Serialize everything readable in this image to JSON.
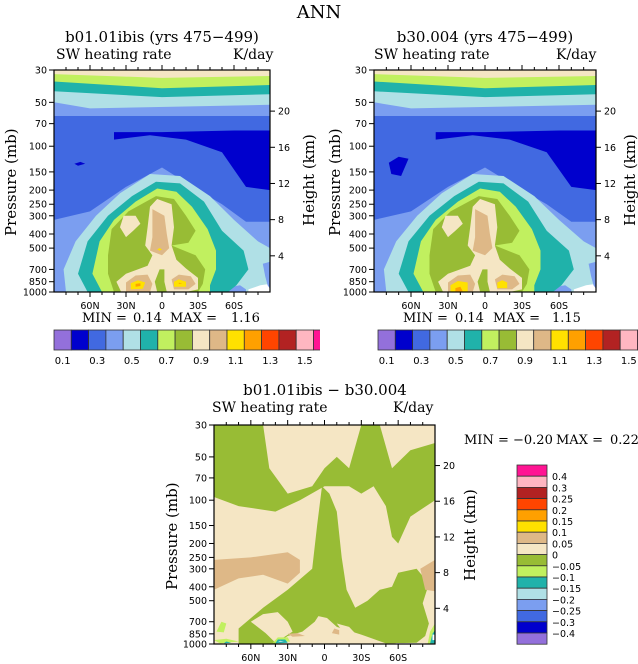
{
  "title": "ANN",
  "colors": {
    "palette": [
      "#9370DB",
      "#0000CD",
      "#4169E1",
      "#7B9EF0",
      "#B0E0E6",
      "#20B2AA",
      "#C1F05F",
      "#98BC35",
      "#F5E6C4",
      "#DEB887",
      "#FFE100",
      "#FFA000",
      "#FF4500",
      "#B22222",
      "#FFB6C1",
      "#FF1493"
    ]
  },
  "chart_data": [
    {
      "type": "heatmap",
      "subtype": "filled-contour",
      "title": "b01.01ibis (yrs 475-499)",
      "left_subtitle": "SW heating rate",
      "right_subtitle": "K/day",
      "xlabel": "",
      "ylabel": "Pressure (mb)",
      "ylabel_right": "Height (km)",
      "x_ticks": [
        "60N",
        "30N",
        "0",
        "30S",
        "60S"
      ],
      "x_tick_values": [
        60,
        30,
        0,
        -30,
        -60
      ],
      "xlim": [
        90,
        -90
      ],
      "y_ticks": [
        "30",
        "50",
        "70",
        "100",
        "150",
        "200",
        "250",
        "300",
        "400",
        "500",
        "700",
        "850",
        "1000"
      ],
      "y_tick_values": [
        30,
        50,
        70,
        100,
        150,
        200,
        250,
        300,
        400,
        500,
        700,
        850,
        1000
      ],
      "ylim": [
        30,
        1000
      ],
      "right_ticks": [
        "20",
        "16",
        "12",
        "8",
        "4"
      ],
      "right_tick_values": [
        20,
        16,
        12,
        8,
        4
      ],
      "min_label": "MIN =",
      "min": "0.14",
      "max_label": "MAX =",
      "max": "1.16",
      "colorbar_labels": [
        "0.1",
        "0.3",
        "0.5",
        "0.7",
        "0.9",
        "1.1",
        "1.3",
        "1.5"
      ],
      "colorbar_levels": [
        0.1,
        0.2,
        0.3,
        0.4,
        0.5,
        0.6,
        0.7,
        0.8,
        0.9,
        1.0,
        1.1,
        1.2,
        1.3,
        1.4,
        1.5
      ],
      "features": "Maxima (~1.1-1.16) near 850 mb at ~20N and ~20S; low values (<0.2) near 100-150 mb at high latitudes"
    },
    {
      "type": "heatmap",
      "subtype": "filled-contour",
      "title": "b30.004 (yrs 475-499)",
      "left_subtitle": "SW heating rate",
      "right_subtitle": "K/day",
      "xlabel": "",
      "ylabel": "Pressure (mb)",
      "ylabel_right": "Height (km)",
      "x_ticks": [
        "60N",
        "30N",
        "0",
        "30S",
        "60S"
      ],
      "x_tick_values": [
        60,
        30,
        0,
        -30,
        -60
      ],
      "xlim": [
        90,
        -90
      ],
      "y_ticks": [
        "30",
        "50",
        "70",
        "100",
        "150",
        "200",
        "250",
        "300",
        "400",
        "500",
        "700",
        "850",
        "1000"
      ],
      "y_tick_values": [
        30,
        50,
        70,
        100,
        150,
        200,
        250,
        300,
        400,
        500,
        700,
        850,
        1000
      ],
      "ylim": [
        30,
        1000
      ],
      "right_ticks": [
        "20",
        "16",
        "12",
        "8",
        "4"
      ],
      "right_tick_values": [
        20,
        16,
        12,
        8,
        4
      ],
      "min_label": "MIN =",
      "min": "0.14",
      "max_label": "MAX =",
      "max": "1.15",
      "colorbar_labels": [
        "0.1",
        "0.3",
        "0.5",
        "0.7",
        "0.9",
        "1.1",
        "1.3",
        "1.5"
      ],
      "colorbar_levels": [
        0.1,
        0.2,
        0.3,
        0.4,
        0.5,
        0.6,
        0.7,
        0.8,
        0.9,
        1.0,
        1.1,
        1.2,
        1.3,
        1.4,
        1.5
      ],
      "features": "Maxima near 850-1000 mb at ~20N and ~20S; low values near 100-150 mb at high latitudes"
    },
    {
      "type": "heatmap",
      "subtype": "filled-contour",
      "title": "b01.01ibis - b30.004",
      "left_subtitle": "SW heating rate",
      "right_subtitle": "K/day",
      "xlabel": "",
      "ylabel": "Pressure (mb)",
      "ylabel_right": "Height (km)",
      "x_ticks": [
        "60N",
        "30N",
        "0",
        "30S",
        "60S"
      ],
      "x_tick_values": [
        60,
        30,
        0,
        -30,
        -60
      ],
      "xlim": [
        90,
        -90
      ],
      "y_ticks": [
        "30",
        "50",
        "70",
        "100",
        "150",
        "200",
        "250",
        "300",
        "400",
        "500",
        "700",
        "850",
        "1000"
      ],
      "y_tick_values": [
        30,
        50,
        70,
        100,
        150,
        200,
        250,
        300,
        400,
        500,
        700,
        850,
        1000
      ],
      "ylim": [
        30,
        1000
      ],
      "right_ticks": [
        "20",
        "16",
        "12",
        "8",
        "4"
      ],
      "right_tick_values": [
        20,
        16,
        12,
        8,
        4
      ],
      "min_label": "MIN =",
      "min": "-0.20",
      "max_label": "MAX =",
      "max": "0.22",
      "colorbar_labels": [
        "0.4",
        "0.3",
        "0.25",
        "0.2",
        "0.15",
        "0.1",
        "0.05",
        "0",
        "−0.05",
        "−0.1",
        "−0.15",
        "−0.2",
        "−0.25",
        "−0.3",
        "−0.4"
      ],
      "colorbar_levels": [
        0.4,
        0.3,
        0.25,
        0.2,
        0.15,
        0.1,
        0.05,
        0,
        -0.05,
        -0.1,
        -0.15,
        -0.2,
        -0.25,
        -0.3,
        -0.4
      ],
      "features": "Mostly between -0.05 and 0.05; small negative patches near surface at 30N and 70S"
    }
  ],
  "panels": {
    "left": {
      "title": "b01.01ibis (yrs 475−499)",
      "sub_left": "SW heating rate",
      "sub_right": "K/day",
      "ylabel": "Pressure (mb)",
      "ylabel_right": "Height (km)",
      "min_label": "MIN =",
      "min": "0.14",
      "max_label": "MAX =",
      "max": "1.16"
    },
    "right": {
      "title": "b30.004 (yrs 475−499)",
      "sub_left": "SW heating rate",
      "sub_right": "K/day",
      "ylabel": "Pressure (mb)",
      "ylabel_right": "Height (km)",
      "min_label": "MIN =",
      "min": "0.14",
      "max_label": "MAX =",
      "max": "1.15"
    },
    "diff": {
      "title": "b01.01ibis − b30.004",
      "sub_left": "SW heating rate",
      "sub_right": "K/day",
      "ylabel": "Pressure (mb)",
      "ylabel_right": "Height (km)",
      "min_label": "MIN =",
      "min": "−0.20",
      "max_label": "MAX =",
      "max": "0.22"
    }
  }
}
